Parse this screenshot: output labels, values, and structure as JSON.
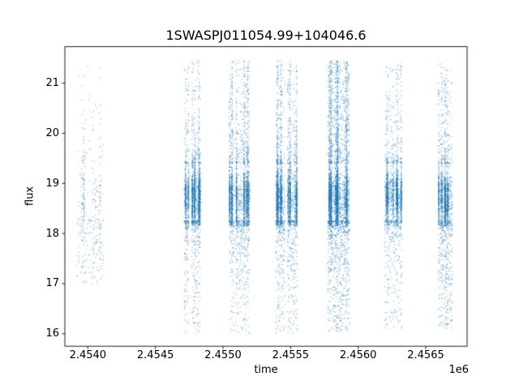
{
  "figure": {
    "background": "#ffffff",
    "frame_color": "#000000"
  },
  "chart_data": {
    "type": "scatter",
    "title": "1SWASPJ011054.99+104046.6",
    "xlabel": "time",
    "ylabel": "flux",
    "x_offset_label": "1e6",
    "grid": false,
    "legend": null,
    "marker_color": "#1f77b4",
    "marker_alpha": 0.55,
    "marker_size_px": 1.15,
    "xlim": [
      2453830,
      2456806
    ],
    "ylim": [
      15.75,
      21.73
    ],
    "xticks": [
      {
        "value": 2454000,
        "label": "2.4540"
      },
      {
        "value": 2454500,
        "label": "2.4545"
      },
      {
        "value": 2455000,
        "label": "2.4550"
      },
      {
        "value": 2455500,
        "label": "2.4555"
      },
      {
        "value": 2456000,
        "label": "2.4560"
      },
      {
        "value": 2456500,
        "label": "2.4565"
      }
    ],
    "yticks": [
      {
        "value": 16,
        "label": "16"
      },
      {
        "value": 17,
        "label": "17"
      },
      {
        "value": 18,
        "label": "18"
      },
      {
        "value": 19,
        "label": "19"
      },
      {
        "value": 20,
        "label": "20"
      },
      {
        "value": 21,
        "label": "21"
      }
    ],
    "clusters": [
      {
        "t_start": 2453920,
        "t_end": 2454118,
        "n_points": 380,
        "nights": 9,
        "scatter_frac": 0.55,
        "core_lo": 18.3,
        "core_hi": 19.45,
        "core_frac": 0.45,
        "core_mean": 18.8,
        "core_sd": 0.33,
        "up_frac": 0.18,
        "up_pow": 1.6,
        "low_pow": 1.4,
        "flux_min": 17.0,
        "flux_max": 21.4,
        "gaps": []
      },
      {
        "t_start": 2454712,
        "t_end": 2454832,
        "n_points": 2300,
        "nights": 13,
        "scatter_frac": 0.33,
        "core_lo": 18.25,
        "core_hi": 19.4,
        "core_frac": 0.66,
        "core_mean": 18.72,
        "core_sd": 0.29,
        "up_frac": 0.14,
        "up_pow": 2.0,
        "low_pow": 2.3,
        "flux_min": 16.0,
        "flux_max": 21.45,
        "gaps": [
          [
            2454746,
            2454768
          ]
        ]
      },
      {
        "t_start": 2455048,
        "t_end": 2455196,
        "n_points": 2700,
        "nights": 15,
        "scatter_frac": 0.34,
        "core_lo": 18.25,
        "core_hi": 19.4,
        "core_frac": 0.6,
        "core_mean": 18.72,
        "core_sd": 0.3,
        "up_frac": 0.2,
        "up_pow": 1.55,
        "low_pow": 2.3,
        "flux_min": 16.0,
        "flux_max": 21.45,
        "gaps": [
          [
            2455086,
            2455094
          ]
        ]
      },
      {
        "t_start": 2455390,
        "t_end": 2455552,
        "n_points": 3100,
        "nights": 17,
        "scatter_frac": 0.34,
        "core_lo": 18.25,
        "core_hi": 19.4,
        "core_frac": 0.62,
        "core_mean": 18.7,
        "core_sd": 0.3,
        "up_frac": 0.18,
        "up_pow": 1.65,
        "low_pow": 2.2,
        "flux_min": 16.0,
        "flux_max": 21.45,
        "gaps": [
          [
            2455458,
            2455476
          ]
        ]
      },
      {
        "t_start": 2455774,
        "t_end": 2455936,
        "n_points": 4300,
        "nights": 15,
        "scatter_frac": 0.35,
        "core_lo": 18.25,
        "core_hi": 19.4,
        "core_frac": 0.54,
        "core_mean": 18.7,
        "core_sd": 0.32,
        "up_frac": 0.28,
        "up_pow": 1.25,
        "low_pow": 1.9,
        "flux_min": 16.05,
        "flux_max": 21.45,
        "gaps": []
      },
      {
        "t_start": 2456194,
        "t_end": 2456326,
        "n_points": 2000,
        "nights": 12,
        "scatter_frac": 0.33,
        "core_lo": 18.25,
        "core_hi": 19.4,
        "core_frac": 0.65,
        "core_mean": 18.75,
        "core_sd": 0.28,
        "up_frac": 0.16,
        "up_pow": 1.8,
        "low_pow": 2.1,
        "flux_min": 16.1,
        "flux_max": 21.4,
        "gaps": []
      },
      {
        "t_start": 2456596,
        "t_end": 2456698,
        "n_points": 1900,
        "nights": 11,
        "scatter_frac": 0.3,
        "core_lo": 18.25,
        "core_hi": 19.4,
        "core_frac": 0.58,
        "core_mean": 18.7,
        "core_sd": 0.3,
        "up_frac": 0.14,
        "up_pow": 1.9,
        "low_pow": 1.45,
        "flux_min": 16.1,
        "flux_max": 21.4,
        "gaps": []
      }
    ]
  }
}
